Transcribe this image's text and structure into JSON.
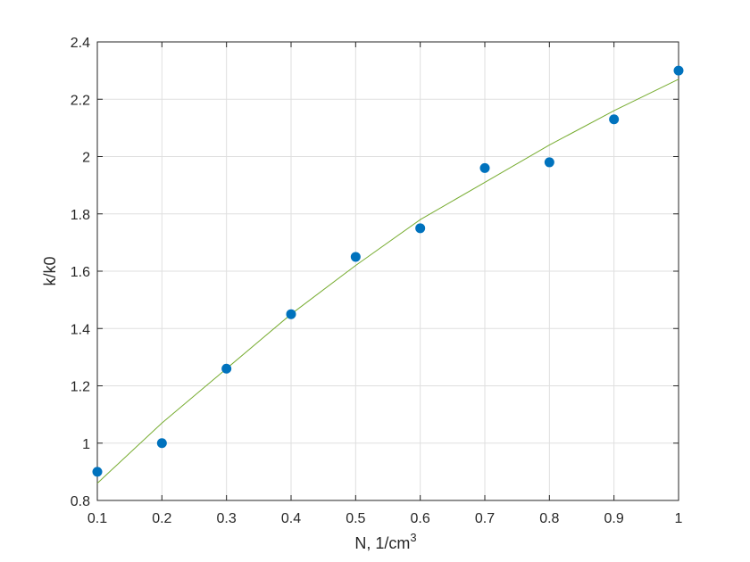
{
  "chart_data": {
    "type": "scatter",
    "xlabel": "N, 1/cm",
    "xlabel_superscript": "3",
    "ylabel": "k/k0",
    "xlim": [
      0.1,
      1.0
    ],
    "ylim": [
      0.8,
      2.4
    ],
    "xticks": [
      "0.1",
      "0.2",
      "0.3",
      "0.4",
      "0.5",
      "0.6",
      "0.7",
      "0.8",
      "0.9",
      "1"
    ],
    "yticks": [
      "0.8",
      "1",
      "1.2",
      "1.4",
      "1.6",
      "1.8",
      "2",
      "2.2",
      "2.4"
    ],
    "grid": true,
    "series": [
      {
        "kind": "points",
        "color": "#0072BD",
        "x": [
          0.1,
          0.2,
          0.3,
          0.4,
          0.5,
          0.6,
          0.7,
          0.8,
          0.9,
          1.0
        ],
        "y": [
          0.9,
          1.0,
          1.26,
          1.45,
          1.65,
          1.75,
          1.96,
          1.98,
          2.13,
          2.3
        ]
      },
      {
        "kind": "fit-line",
        "color": "#77AC30",
        "x": [
          0.1,
          0.2,
          0.3,
          0.4,
          0.5,
          0.6,
          0.7,
          0.8,
          0.9,
          1.0
        ],
        "y": [
          0.86,
          1.07,
          1.26,
          1.45,
          1.62,
          1.78,
          1.91,
          2.04,
          2.16,
          2.27
        ]
      }
    ]
  }
}
